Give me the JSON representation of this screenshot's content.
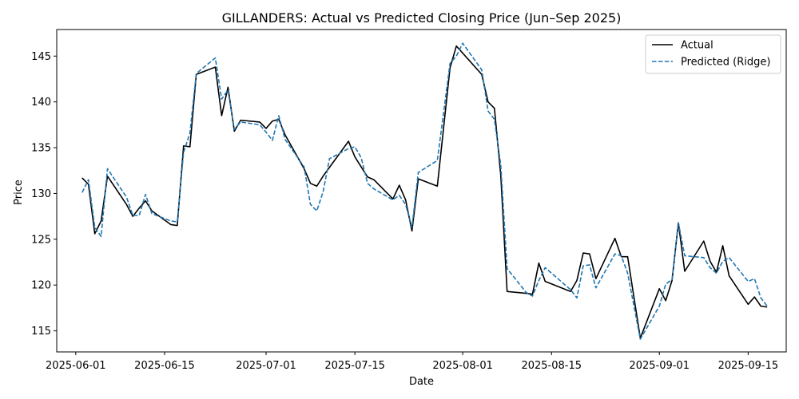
{
  "chart_data": {
    "type": "line",
    "title": "GILLANDERS: Actual vs Predicted Closing Price (Jun–Sep 2025)",
    "xlabel": "Date",
    "ylabel": "Price",
    "xlim": [
      "2025-05-29",
      "2025-09-21"
    ],
    "ylim": [
      112.7,
      147.9
    ],
    "x_ticks": [
      "2025-06-01",
      "2025-06-15",
      "2025-07-01",
      "2025-07-15",
      "2025-08-01",
      "2025-08-15",
      "2025-09-01",
      "2025-09-15"
    ],
    "y_ticks": [
      115,
      120,
      125,
      130,
      135,
      140,
      145
    ],
    "grid": false,
    "legend_position": "top-right",
    "series": [
      {
        "name": "Actual",
        "color": "#000000",
        "style": "solid",
        "points": [
          [
            "2025-06-02",
            131.7
          ],
          [
            "2025-06-03",
            131.0
          ],
          [
            "2025-06-04",
            125.6
          ],
          [
            "2025-06-05",
            127.0
          ],
          [
            "2025-06-06",
            131.9
          ],
          [
            "2025-06-09",
            128.8
          ],
          [
            "2025-06-10",
            127.5
          ],
          [
            "2025-06-11",
            128.4
          ],
          [
            "2025-06-12",
            129.2
          ],
          [
            "2025-06-13",
            128.1
          ],
          [
            "2025-06-16",
            126.6
          ],
          [
            "2025-06-17",
            126.5
          ],
          [
            "2025-06-18",
            135.2
          ],
          [
            "2025-06-19",
            135.1
          ],
          [
            "2025-06-20",
            143.0
          ],
          [
            "2025-06-23",
            143.8
          ],
          [
            "2025-06-24",
            138.5
          ],
          [
            "2025-06-25",
            141.6
          ],
          [
            "2025-06-26",
            136.8
          ],
          [
            "2025-06-27",
            138.0
          ],
          [
            "2025-06-30",
            137.8
          ],
          [
            "2025-07-01",
            137.1
          ],
          [
            "2025-07-02",
            137.9
          ],
          [
            "2025-07-03",
            138.1
          ],
          [
            "2025-07-04",
            136.4
          ],
          [
            "2025-07-07",
            132.7
          ],
          [
            "2025-07-08",
            131.1
          ],
          [
            "2025-07-09",
            130.8
          ],
          [
            "2025-07-10",
            131.9
          ],
          [
            "2025-07-14",
            135.7
          ],
          [
            "2025-07-15",
            134.0
          ],
          [
            "2025-07-17",
            131.8
          ],
          [
            "2025-07-18",
            131.5
          ],
          [
            "2025-07-21",
            129.4
          ],
          [
            "2025-07-22",
            130.9
          ],
          [
            "2025-07-23",
            129.3
          ],
          [
            "2025-07-24",
            125.9
          ],
          [
            "2025-07-25",
            131.6
          ],
          [
            "2025-07-28",
            130.8
          ],
          [
            "2025-07-30",
            143.7
          ],
          [
            "2025-07-31",
            146.1
          ],
          [
            "2025-08-04",
            143.0
          ],
          [
            "2025-08-05",
            140.0
          ],
          [
            "2025-08-06",
            139.3
          ],
          [
            "2025-08-07",
            132.0
          ],
          [
            "2025-08-08",
            119.3
          ],
          [
            "2025-08-11",
            119.1
          ],
          [
            "2025-08-12",
            119.0
          ],
          [
            "2025-08-13",
            122.4
          ],
          [
            "2025-08-14",
            120.4
          ],
          [
            "2025-08-18",
            119.3
          ],
          [
            "2025-08-19",
            120.5
          ],
          [
            "2025-08-20",
            123.5
          ],
          [
            "2025-08-21",
            123.4
          ],
          [
            "2025-08-22",
            120.7
          ],
          [
            "2025-08-25",
            125.1
          ],
          [
            "2025-08-26",
            123.1
          ],
          [
            "2025-08-27",
            123.1
          ],
          [
            "2025-08-29",
            114.2
          ],
          [
            "2025-09-01",
            119.6
          ],
          [
            "2025-09-02",
            118.3
          ],
          [
            "2025-09-03",
            120.5
          ],
          [
            "2025-09-04",
            126.8
          ],
          [
            "2025-09-05",
            121.5
          ],
          [
            "2025-09-08",
            124.8
          ],
          [
            "2025-09-09",
            122.6
          ],
          [
            "2025-09-10",
            121.4
          ],
          [
            "2025-09-11",
            124.3
          ],
          [
            "2025-09-12",
            121.0
          ],
          [
            "2025-09-15",
            117.9
          ],
          [
            "2025-09-16",
            118.7
          ],
          [
            "2025-09-17",
            117.7
          ],
          [
            "2025-09-18",
            117.6
          ]
        ]
      },
      {
        "name": "Predicted (Ridge)",
        "color": "#1f77b4",
        "style": "dashed",
        "points": [
          [
            "2025-06-02",
            130.1
          ],
          [
            "2025-06-03",
            131.5
          ],
          [
            "2025-06-04",
            126.3
          ],
          [
            "2025-06-05",
            125.3
          ],
          [
            "2025-06-06",
            132.7
          ],
          [
            "2025-06-09",
            129.6
          ],
          [
            "2025-06-10",
            127.6
          ],
          [
            "2025-06-11",
            127.6
          ],
          [
            "2025-06-12",
            129.9
          ],
          [
            "2025-06-13",
            127.8
          ],
          [
            "2025-06-16",
            127.0
          ],
          [
            "2025-06-17",
            126.9
          ],
          [
            "2025-06-18",
            134.5
          ],
          [
            "2025-06-19",
            136.6
          ],
          [
            "2025-06-20",
            143.1
          ],
          [
            "2025-06-23",
            144.8
          ],
          [
            "2025-06-24",
            140.3
          ],
          [
            "2025-06-25",
            141.3
          ],
          [
            "2025-06-26",
            137.0
          ],
          [
            "2025-06-27",
            137.8
          ],
          [
            "2025-06-30",
            137.5
          ],
          [
            "2025-07-01",
            136.7
          ],
          [
            "2025-07-02",
            135.8
          ],
          [
            "2025-07-03",
            138.5
          ],
          [
            "2025-07-04",
            135.9
          ],
          [
            "2025-07-07",
            132.9
          ],
          [
            "2025-07-08",
            128.8
          ],
          [
            "2025-07-09",
            128.1
          ],
          [
            "2025-07-10",
            130.2
          ],
          [
            "2025-07-11",
            133.8
          ],
          [
            "2025-07-14",
            134.9
          ],
          [
            "2025-07-15",
            135.1
          ],
          [
            "2025-07-16",
            133.9
          ],
          [
            "2025-07-17",
            131.1
          ],
          [
            "2025-07-18",
            130.5
          ],
          [
            "2025-07-21",
            129.3
          ],
          [
            "2025-07-22",
            129.8
          ],
          [
            "2025-07-23",
            128.8
          ],
          [
            "2025-07-24",
            126.3
          ],
          [
            "2025-07-25",
            132.3
          ],
          [
            "2025-07-28",
            133.6
          ],
          [
            "2025-07-30",
            144.2
          ],
          [
            "2025-07-31",
            145.0
          ],
          [
            "2025-08-01",
            146.4
          ],
          [
            "2025-08-04",
            143.5
          ],
          [
            "2025-08-05",
            139.0
          ],
          [
            "2025-08-06",
            138.1
          ],
          [
            "2025-08-07",
            133.1
          ],
          [
            "2025-08-08",
            121.8
          ],
          [
            "2025-08-11",
            119.2
          ],
          [
            "2025-08-12",
            118.8
          ],
          [
            "2025-08-13",
            120.5
          ],
          [
            "2025-08-14",
            121.9
          ],
          [
            "2025-08-18",
            119.5
          ],
          [
            "2025-08-19",
            118.6
          ],
          [
            "2025-08-20",
            122.1
          ],
          [
            "2025-08-21",
            122.2
          ],
          [
            "2025-08-22",
            119.7
          ],
          [
            "2025-08-25",
            123.4
          ],
          [
            "2025-08-26",
            123.2
          ],
          [
            "2025-08-27",
            121.3
          ],
          [
            "2025-08-29",
            114.1
          ],
          [
            "2025-09-01",
            117.7
          ],
          [
            "2025-09-02",
            120.1
          ],
          [
            "2025-09-03",
            120.6
          ],
          [
            "2025-09-04",
            126.8
          ],
          [
            "2025-09-05",
            123.2
          ],
          [
            "2025-09-08",
            123.0
          ],
          [
            "2025-09-09",
            121.9
          ],
          [
            "2025-09-10",
            121.3
          ],
          [
            "2025-09-11",
            122.6
          ],
          [
            "2025-09-12",
            123.0
          ],
          [
            "2025-09-15",
            120.4
          ],
          [
            "2025-09-16",
            120.7
          ],
          [
            "2025-09-17",
            118.6
          ],
          [
            "2025-09-18",
            117.7
          ]
        ]
      }
    ]
  }
}
